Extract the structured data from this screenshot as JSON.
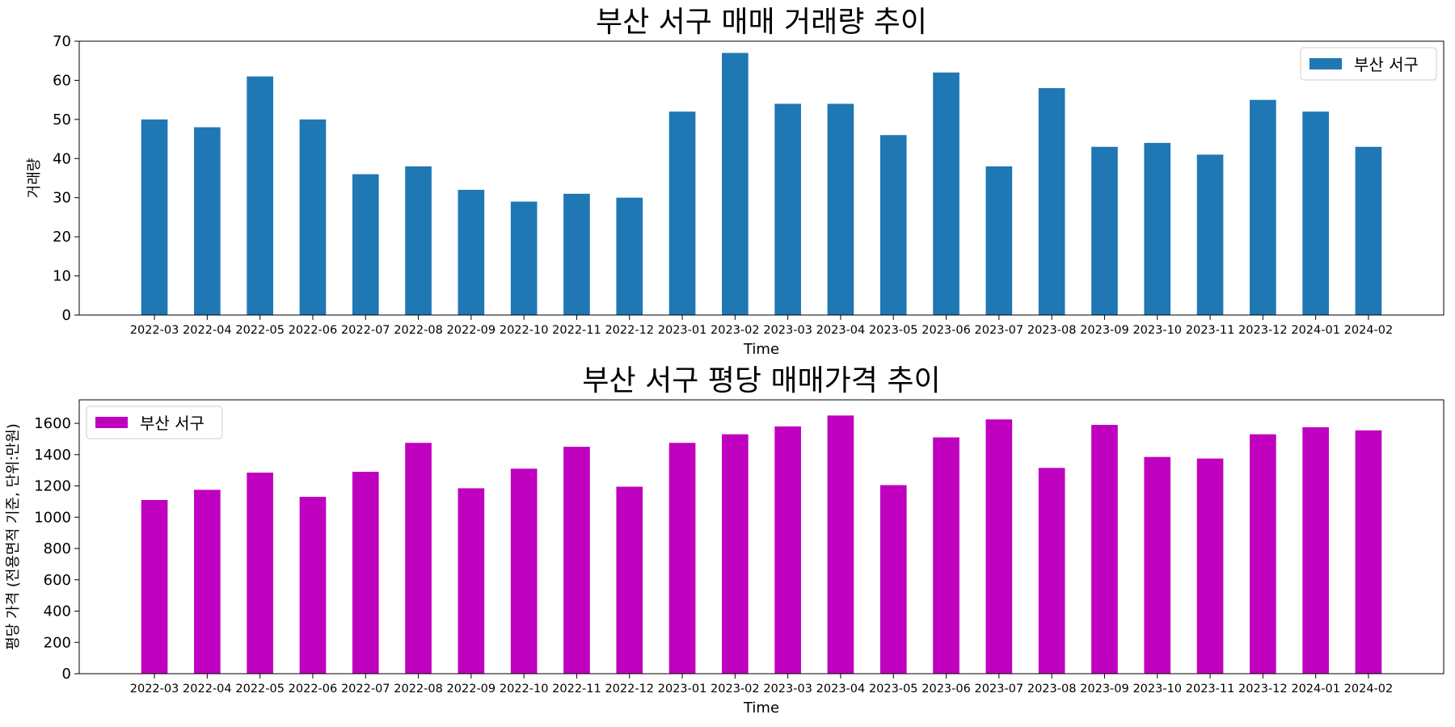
{
  "chart_data": [
    {
      "type": "bar",
      "title": "부산 서구 매매 거래량 추이",
      "xlabel": "Time",
      "ylabel": "거래량",
      "ylim": [
        0,
        70
      ],
      "yticks": [
        0,
        10,
        20,
        30,
        40,
        50,
        60,
        70
      ],
      "legend_placement": "top-right",
      "grid": false,
      "categories": [
        "2022-03",
        "2022-04",
        "2022-05",
        "2022-06",
        "2022-07",
        "2022-08",
        "2022-09",
        "2022-10",
        "2022-11",
        "2022-12",
        "2023-01",
        "2023-02",
        "2023-03",
        "2023-04",
        "2023-05",
        "2023-06",
        "2023-07",
        "2023-08",
        "2023-09",
        "2023-10",
        "2023-11",
        "2023-12",
        "2024-01",
        "2024-02"
      ],
      "series": [
        {
          "name": "부산 서구",
          "color": "#1f77b4",
          "values": [
            50,
            48,
            61,
            50,
            36,
            38,
            32,
            29,
            31,
            30,
            52,
            67,
            54,
            54,
            46,
            62,
            38,
            58,
            43,
            44,
            41,
            55,
            52,
            43
          ]
        }
      ]
    },
    {
      "type": "bar",
      "title": "부산 서구 평당 매매가격 추이",
      "xlabel": "Time",
      "ylabel": "평당 가격 (전용면적 기준, 단위:만원)",
      "ylim": [
        0,
        1750
      ],
      "yticks": [
        0,
        200,
        400,
        600,
        800,
        1000,
        1200,
        1400,
        1600
      ],
      "legend_placement": "top-left",
      "grid": false,
      "categories": [
        "2022-03",
        "2022-04",
        "2022-05",
        "2022-06",
        "2022-07",
        "2022-08",
        "2022-09",
        "2022-10",
        "2022-11",
        "2022-12",
        "2023-01",
        "2023-02",
        "2023-03",
        "2023-04",
        "2023-05",
        "2023-06",
        "2023-07",
        "2023-08",
        "2023-09",
        "2023-10",
        "2023-11",
        "2023-12",
        "2024-01",
        "2024-02"
      ],
      "series": [
        {
          "name": "부산 서구",
          "color": "#bf00bf",
          "values": [
            1110,
            1175,
            1285,
            1130,
            1290,
            1475,
            1185,
            1310,
            1450,
            1195,
            1475,
            1530,
            1580,
            1650,
            1205,
            1510,
            1625,
            1315,
            1590,
            1385,
            1375,
            1530,
            1575,
            1555
          ]
        }
      ]
    }
  ]
}
